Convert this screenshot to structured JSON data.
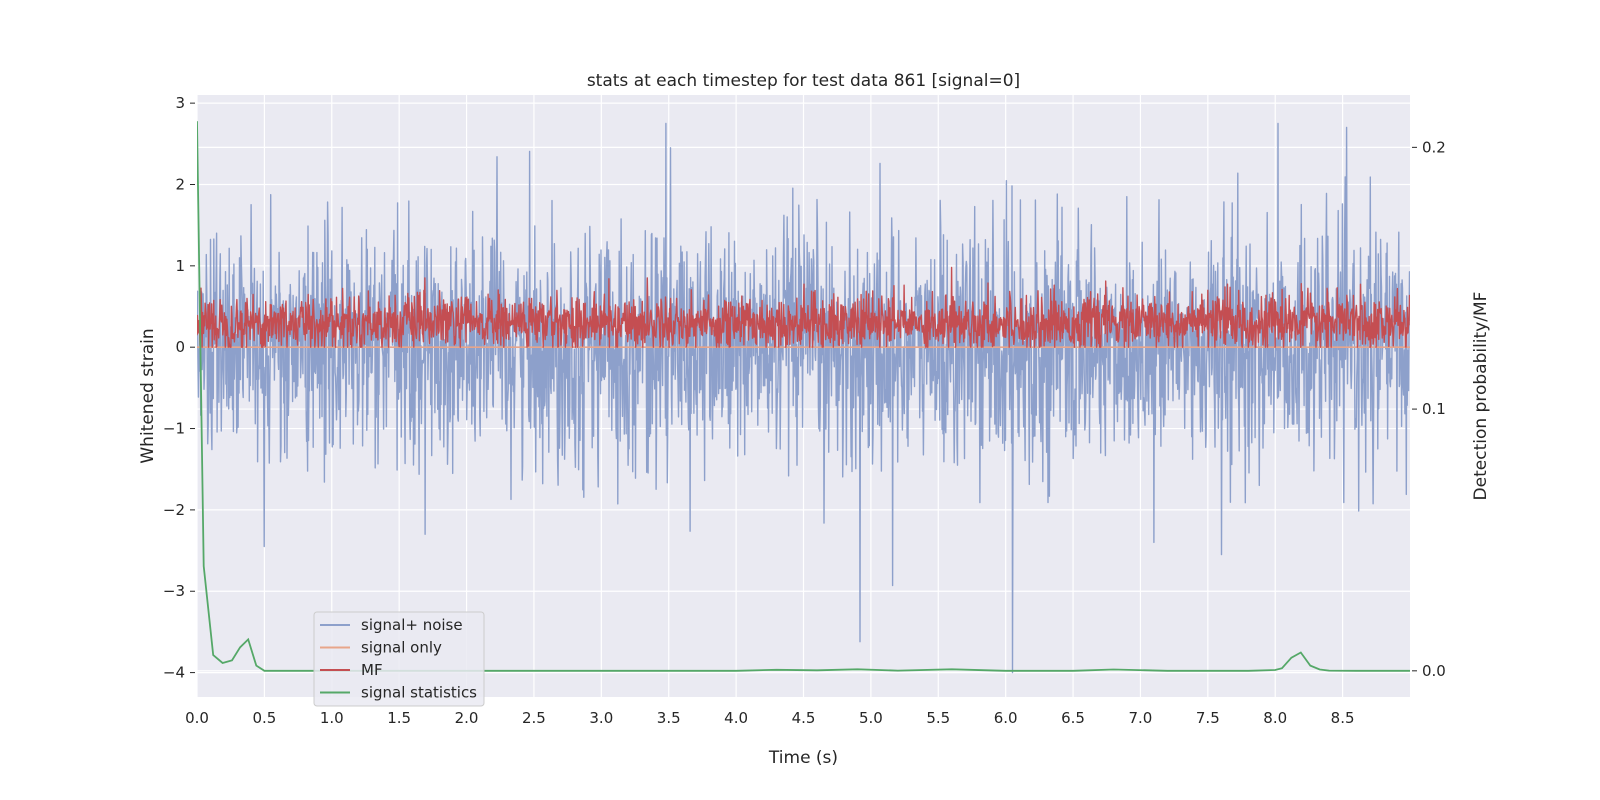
{
  "chart_data": {
    "type": "line",
    "title": "stats at each timestep for test data 861 [signal=0]",
    "xlabel": "Time (s)",
    "ylabel": "Whitened strain",
    "ylabel_right": "Detection probability/MF",
    "xlim": [
      0.0,
      9.0
    ],
    "ylim": [
      -4.3,
      3.1
    ],
    "ylim_right": [
      -0.01,
      0.22
    ],
    "grid": true,
    "legend_position": "lower-left",
    "x_ticks": [
      0.0,
      0.5,
      1.0,
      1.5,
      2.0,
      2.5,
      3.0,
      3.5,
      4.0,
      4.5,
      5.0,
      5.5,
      6.0,
      6.5,
      7.0,
      7.5,
      8.0,
      8.5
    ],
    "x_tick_labels": [
      "0.0",
      "0.5",
      "1.0",
      "1.5",
      "2.0",
      "2.5",
      "3.0",
      "3.5",
      "4.0",
      "4.5",
      "5.0",
      "5.5",
      "6.0",
      "6.5",
      "7.0",
      "7.5",
      "8.0",
      "8.5"
    ],
    "y_ticks": [
      3,
      2,
      1,
      0,
      -1,
      -2,
      -3,
      -4
    ],
    "y_tick_labels": [
      "3",
      "2",
      "1",
      "0",
      "−1",
      "−2",
      "−3",
      "−4"
    ],
    "y_right_ticks": [
      0.2,
      0.1,
      0.0
    ],
    "y_right_tick_labels": [
      "0.2",
      "0.1",
      "0.0"
    ],
    "series": [
      {
        "name": "signal+ noise",
        "axis": "left",
        "color": "#8da0cb",
        "description": "dense whitened noise trace, roughly in [-2.3, 2.7] with spikes",
        "envelope_min": -2.3,
        "envelope_max": 2.7,
        "spikes": [
          {
            "x": 4.92,
            "y": -3.62
          },
          {
            "x": 6.05,
            "y": -4.0
          },
          {
            "x": 5.16,
            "y": -2.93
          },
          {
            "x": 0.5,
            "y": -2.45
          },
          {
            "x": 3.48,
            "y": 2.75
          },
          {
            "x": 7.1,
            "y": -2.4
          },
          {
            "x": 7.6,
            "y": -2.55
          },
          {
            "x": 8.02,
            "y": 2.75
          }
        ]
      },
      {
        "name": "signal only",
        "axis": "left",
        "color": "#e8a58a",
        "description": "flat at 0 (no signal)",
        "x": [
          0.0,
          9.0
        ],
        "y": [
          0.0,
          0.0
        ]
      },
      {
        "name": "MF",
        "axis": "left",
        "color": "#c44e52",
        "description": "matched filter output, dense trace roughly in [0.0, 0.85]",
        "envelope_min": 0.0,
        "envelope_max": 0.85,
        "spikes": [
          {
            "x": 5.6,
            "y": 0.98
          }
        ]
      },
      {
        "name": "signal statistics",
        "axis": "right",
        "color": "#55a868",
        "x": [
          0.0,
          0.05,
          0.12,
          0.19,
          0.26,
          0.32,
          0.38,
          0.44,
          0.5,
          1.0,
          2.0,
          3.0,
          4.0,
          4.3,
          4.6,
          4.9,
          5.2,
          5.6,
          6.0,
          6.5,
          6.8,
          7.2,
          7.8,
          8.0,
          8.05,
          8.12,
          8.19,
          8.26,
          8.33,
          8.4,
          8.6,
          9.0
        ],
        "y": [
          0.21,
          0.04,
          0.006,
          0.003,
          0.004,
          0.009,
          0.012,
          0.002,
          0.0,
          0.0,
          0.0,
          0.0,
          0.0,
          0.0004,
          0.0002,
          0.0006,
          0.0001,
          0.0006,
          0.0,
          0.0,
          0.0005,
          0.0,
          0.0,
          0.0003,
          0.001,
          0.005,
          0.007,
          0.002,
          0.0005,
          0.0001,
          0.0,
          0.0
        ]
      }
    ],
    "legend": [
      "signal+ noise",
      "signal only",
      "MF",
      "signal statistics"
    ]
  }
}
